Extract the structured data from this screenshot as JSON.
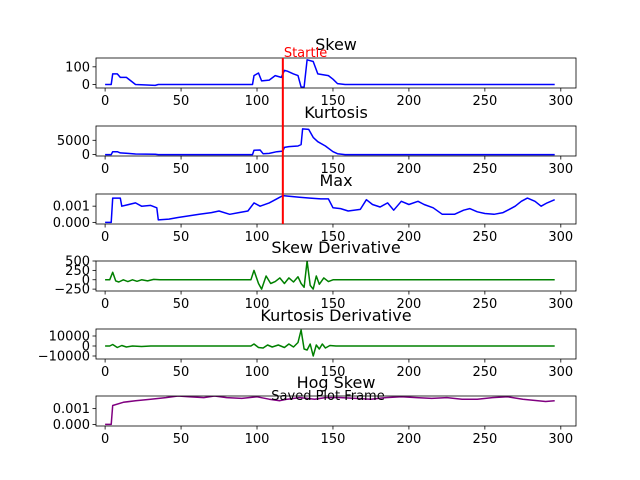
{
  "figure": {
    "subtitle": "Saved Plot Frame",
    "startle_label": "Startle",
    "startle_x": 117,
    "startle_color": "#ff0000"
  },
  "chart_data": [
    {
      "type": "line",
      "title": "Skew",
      "color": "#0000ff",
      "xlim": [
        -6,
        310
      ],
      "ylim": [
        -20,
        150
      ],
      "xticks": [
        0,
        50,
        100,
        150,
        200,
        250,
        300
      ],
      "yticks": [
        0,
        100
      ],
      "ytick_labels": [
        "0",
        "100"
      ],
      "points": [
        [
          0,
          0
        ],
        [
          4,
          0
        ],
        [
          5,
          60
        ],
        [
          8,
          60
        ],
        [
          10,
          40
        ],
        [
          14,
          40
        ],
        [
          17,
          20
        ],
        [
          20,
          0
        ],
        [
          33,
          -5
        ],
        [
          35,
          0
        ],
        [
          97,
          0
        ],
        [
          98,
          50
        ],
        [
          101,
          65
        ],
        [
          103,
          20
        ],
        [
          108,
          25
        ],
        [
          112,
          50
        ],
        [
          116,
          40
        ],
        [
          118,
          80
        ],
        [
          120,
          75
        ],
        [
          124,
          60
        ],
        [
          127,
          50
        ],
        [
          129,
          -15
        ],
        [
          131,
          -15
        ],
        [
          133,
          140
        ],
        [
          137,
          130
        ],
        [
          140,
          60
        ],
        [
          147,
          50
        ],
        [
          150,
          30
        ],
        [
          153,
          5
        ],
        [
          158,
          0
        ],
        [
          296,
          0
        ]
      ]
    },
    {
      "type": "line",
      "title": "Kurtosis",
      "color": "#0000ff",
      "xlim": [
        -6,
        310
      ],
      "ylim": [
        -500,
        10000
      ],
      "xticks": [
        0,
        50,
        100,
        150,
        200,
        250,
        300
      ],
      "yticks": [
        0,
        5000
      ],
      "ytick_labels": [
        "0",
        "5000"
      ],
      "points": [
        [
          0,
          0
        ],
        [
          4,
          0
        ],
        [
          5,
          1000
        ],
        [
          8,
          1000
        ],
        [
          10,
          600
        ],
        [
          15,
          400
        ],
        [
          20,
          200
        ],
        [
          33,
          100
        ],
        [
          35,
          0
        ],
        [
          97,
          0
        ],
        [
          98,
          1500
        ],
        [
          102,
          1600
        ],
        [
          104,
          300
        ],
        [
          108,
          400
        ],
        [
          113,
          1000
        ],
        [
          117,
          1200
        ],
        [
          118,
          2500
        ],
        [
          121,
          2800
        ],
        [
          127,
          3000
        ],
        [
          129,
          3500
        ],
        [
          130,
          9000
        ],
        [
          134,
          8800
        ],
        [
          137,
          6000
        ],
        [
          140,
          4500
        ],
        [
          145,
          3000
        ],
        [
          150,
          1000
        ],
        [
          153,
          300
        ],
        [
          158,
          0
        ],
        [
          296,
          0
        ]
      ]
    },
    {
      "type": "line",
      "title": "Max",
      "color": "#0000ff",
      "xlim": [
        -6,
        310
      ],
      "ylim": [
        -0.0001,
        0.00175
      ],
      "xticks": [
        0,
        50,
        100,
        150,
        200,
        250,
        300
      ],
      "yticks": [
        0,
        0.001
      ],
      "ytick_labels": [
        "0.000",
        "0.001"
      ],
      "points": [
        [
          0,
          0
        ],
        [
          4,
          0
        ],
        [
          5,
          0.0015
        ],
        [
          10,
          0.0015
        ],
        [
          11,
          0.001
        ],
        [
          20,
          0.0012
        ],
        [
          24,
          0.001
        ],
        [
          30,
          0.00105
        ],
        [
          34,
          0.0009
        ],
        [
          35,
          0.00015
        ],
        [
          42,
          0.0002
        ],
        [
          48,
          0.0003
        ],
        [
          55,
          0.0004
        ],
        [
          62,
          0.0005
        ],
        [
          70,
          0.0006
        ],
        [
          75,
          0.0007
        ],
        [
          82,
          0.0005
        ],
        [
          88,
          0.0006
        ],
        [
          94,
          0.0007
        ],
        [
          98,
          0.0012
        ],
        [
          102,
          0.001
        ],
        [
          108,
          0.0012
        ],
        [
          114,
          0.0015
        ],
        [
          117,
          0.00165
        ],
        [
          122,
          0.0016
        ],
        [
          128,
          0.00155
        ],
        [
          135,
          0.0015
        ],
        [
          142,
          0.00145
        ],
        [
          147,
          0.00145
        ],
        [
          150,
          0.0009
        ],
        [
          155,
          0.00085
        ],
        [
          160,
          0.0007
        ],
        [
          168,
          0.0008
        ],
        [
          172,
          0.0014
        ],
        [
          176,
          0.0011
        ],
        [
          181,
          0.00095
        ],
        [
          186,
          0.0012
        ],
        [
          190,
          0.00075
        ],
        [
          195,
          0.0013
        ],
        [
          200,
          0.0011
        ],
        [
          206,
          0.0013
        ],
        [
          210,
          0.0011
        ],
        [
          216,
          0.0009
        ],
        [
          222,
          0.0005
        ],
        [
          230,
          0.0005
        ],
        [
          236,
          0.00075
        ],
        [
          240,
          0.00085
        ],
        [
          245,
          0.00065
        ],
        [
          250,
          0.00055
        ],
        [
          256,
          0.0005
        ],
        [
          262,
          0.0006
        ],
        [
          266,
          0.0008
        ],
        [
          270,
          0.001
        ],
        [
          274,
          0.0013
        ],
        [
          278,
          0.0015
        ],
        [
          283,
          0.0013
        ],
        [
          287,
          0.001
        ],
        [
          291,
          0.0012
        ],
        [
          296,
          0.0014
        ]
      ]
    },
    {
      "type": "line",
      "title": "Skew Derivative",
      "color": "#008000",
      "xlim": [
        -6,
        310
      ],
      "ylim": [
        -300,
        500
      ],
      "xticks": [
        0,
        50,
        100,
        150,
        200,
        250,
        300
      ],
      "yticks": [
        -250,
        0,
        250,
        500
      ],
      "ytick_labels": [
        "−250",
        "0",
        "250",
        "500"
      ],
      "points": [
        [
          0,
          0
        ],
        [
          3,
          0
        ],
        [
          5,
          200
        ],
        [
          7,
          -30
        ],
        [
          9,
          -60
        ],
        [
          12,
          0
        ],
        [
          15,
          -50
        ],
        [
          18,
          0
        ],
        [
          21,
          -40
        ],
        [
          24,
          0
        ],
        [
          28,
          -30
        ],
        [
          32,
          10
        ],
        [
          36,
          0
        ],
        [
          96,
          0
        ],
        [
          98,
          250
        ],
        [
          101,
          -100
        ],
        [
          103,
          -250
        ],
        [
          106,
          100
        ],
        [
          109,
          -100
        ],
        [
          112,
          -50
        ],
        [
          115,
          50
        ],
        [
          118,
          -100
        ],
        [
          121,
          50
        ],
        [
          124,
          -60
        ],
        [
          127,
          80
        ],
        [
          129,
          -100
        ],
        [
          131,
          -200
        ],
        [
          133,
          500
        ],
        [
          135,
          -150
        ],
        [
          137,
          -250
        ],
        [
          139,
          100
        ],
        [
          141,
          -120
        ],
        [
          144,
          50
        ],
        [
          147,
          -50
        ],
        [
          150,
          0
        ],
        [
          296,
          0
        ]
      ]
    },
    {
      "type": "line",
      "title": "Kurtosis Derivative",
      "color": "#008000",
      "xlim": [
        -6,
        310
      ],
      "ylim": [
        -13000,
        17000
      ],
      "xticks": [
        0,
        50,
        100,
        150,
        200,
        250,
        300
      ],
      "yticks": [
        -10000,
        0,
        10000
      ],
      "ytick_labels": [
        "−10000",
        "0",
        "10000"
      ],
      "points": [
        [
          0,
          0
        ],
        [
          3,
          0
        ],
        [
          5,
          1500
        ],
        [
          8,
          -1500
        ],
        [
          11,
          500
        ],
        [
          14,
          -1000
        ],
        [
          18,
          0
        ],
        [
          24,
          -500
        ],
        [
          30,
          0
        ],
        [
          96,
          0
        ],
        [
          98,
          2000
        ],
        [
          101,
          -1500
        ],
        [
          104,
          -2000
        ],
        [
          107,
          1000
        ],
        [
          110,
          -1000
        ],
        [
          114,
          1000
        ],
        [
          118,
          -1500
        ],
        [
          121,
          2000
        ],
        [
          124,
          -1000
        ],
        [
          127,
          3500
        ],
        [
          129,
          16000
        ],
        [
          131,
          -3000
        ],
        [
          133,
          -4000
        ],
        [
          135,
          2000
        ],
        [
          137,
          -10000
        ],
        [
          139,
          1000
        ],
        [
          141,
          -3000
        ],
        [
          143,
          2000
        ],
        [
          145,
          -2000
        ],
        [
          148,
          500
        ],
        [
          152,
          0
        ],
        [
          296,
          0
        ]
      ]
    },
    {
      "type": "line",
      "title": "Hog Skew",
      "subtitle": "Saved Plot Frame",
      "color": "#800080",
      "xlim": [
        -6,
        310
      ],
      "ylim": [
        -0.0001,
        0.0018
      ],
      "xticks": [
        0,
        50,
        100,
        150,
        200,
        250,
        300
      ],
      "yticks": [
        0,
        0.001
      ],
      "ytick_labels": [
        "0.000",
        "0.001"
      ],
      "points": [
        [
          0,
          0
        ],
        [
          4,
          0
        ],
        [
          5,
          0.0012
        ],
        [
          12,
          0.0014
        ],
        [
          20,
          0.0015
        ],
        [
          30,
          0.0016
        ],
        [
          40,
          0.0017
        ],
        [
          48,
          0.0018
        ],
        [
          55,
          0.00175
        ],
        [
          65,
          0.0017
        ],
        [
          72,
          0.0018
        ],
        [
          80,
          0.0017
        ],
        [
          90,
          0.00165
        ],
        [
          100,
          0.00175
        ],
        [
          108,
          0.0016
        ],
        [
          115,
          0.0015
        ],
        [
          120,
          0.0016
        ],
        [
          128,
          0.0017
        ],
        [
          133,
          0.00165
        ],
        [
          138,
          0.0016
        ],
        [
          145,
          0.0017
        ],
        [
          155,
          0.0017
        ],
        [
          165,
          0.00165
        ],
        [
          175,
          0.0016
        ],
        [
          185,
          0.0017
        ],
        [
          195,
          0.00175
        ],
        [
          205,
          0.0017
        ],
        [
          215,
          0.00165
        ],
        [
          225,
          0.0017
        ],
        [
          235,
          0.0016
        ],
        [
          245,
          0.0016
        ],
        [
          255,
          0.0017
        ],
        [
          265,
          0.00175
        ],
        [
          275,
          0.0016
        ],
        [
          285,
          0.0015
        ],
        [
          290,
          0.00145
        ],
        [
          296,
          0.0015
        ]
      ]
    }
  ]
}
